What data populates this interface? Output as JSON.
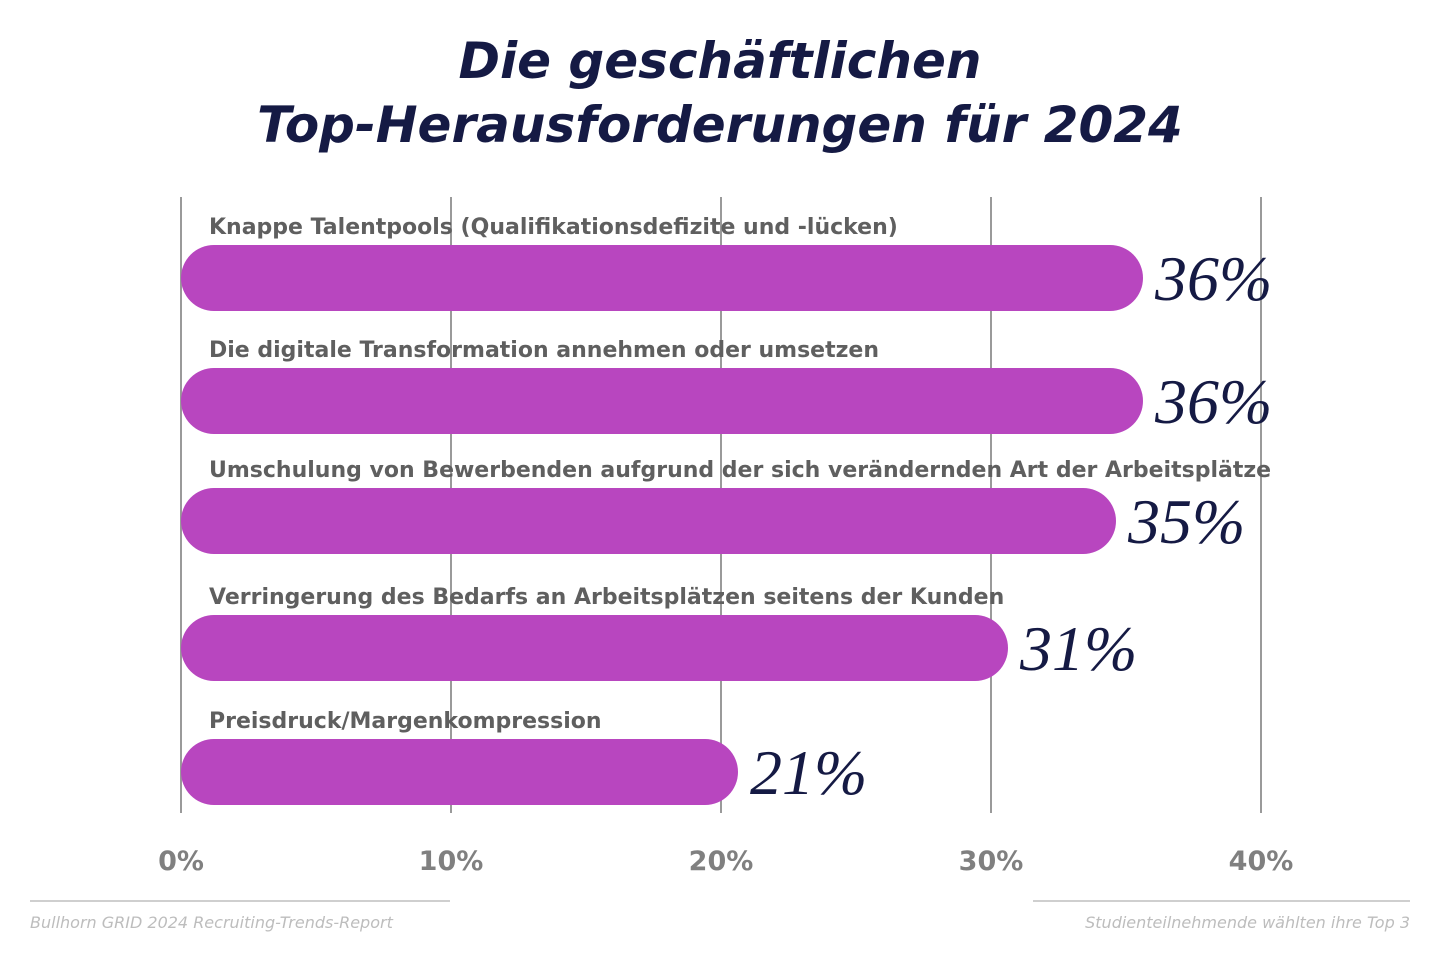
{
  "chart_data": {
    "type": "bar",
    "orientation": "horizontal",
    "title": [
      "Die geschäftlichen",
      "Top-Herausforderungen für 2024"
    ],
    "categories": [
      "Knappe Talentpools (Qualifikationsdefizite und -lücken)",
      "Die digitale Transformation annehmen oder umsetzen",
      "Umschulung von Bewerbenden aufgrund der sich verändernden Art der Arbeitsplätze",
      "Verringerung des Bedarfs an Arbeitsplätzen seitens der Kunden",
      "Preisdruck/Margenkompression"
    ],
    "values": [
      36,
      36,
      35,
      31,
      21
    ],
    "value_labels": [
      "36%",
      "36%",
      "35%",
      "31%",
      "21%"
    ],
    "xlim": [
      0,
      40
    ],
    "xticks": [
      0,
      10,
      20,
      30,
      40
    ],
    "xtick_labels": [
      "0%",
      "10%",
      "20%",
      "30%",
      "40%"
    ],
    "grid": true,
    "bar_color": "#b846bf",
    "text_color": "#151a44"
  },
  "footer": {
    "source": "Bullhorn GRID 2024 Recruiting-Trends-Report",
    "note": "Studienteilnehmende wählten ihre Top 3"
  }
}
